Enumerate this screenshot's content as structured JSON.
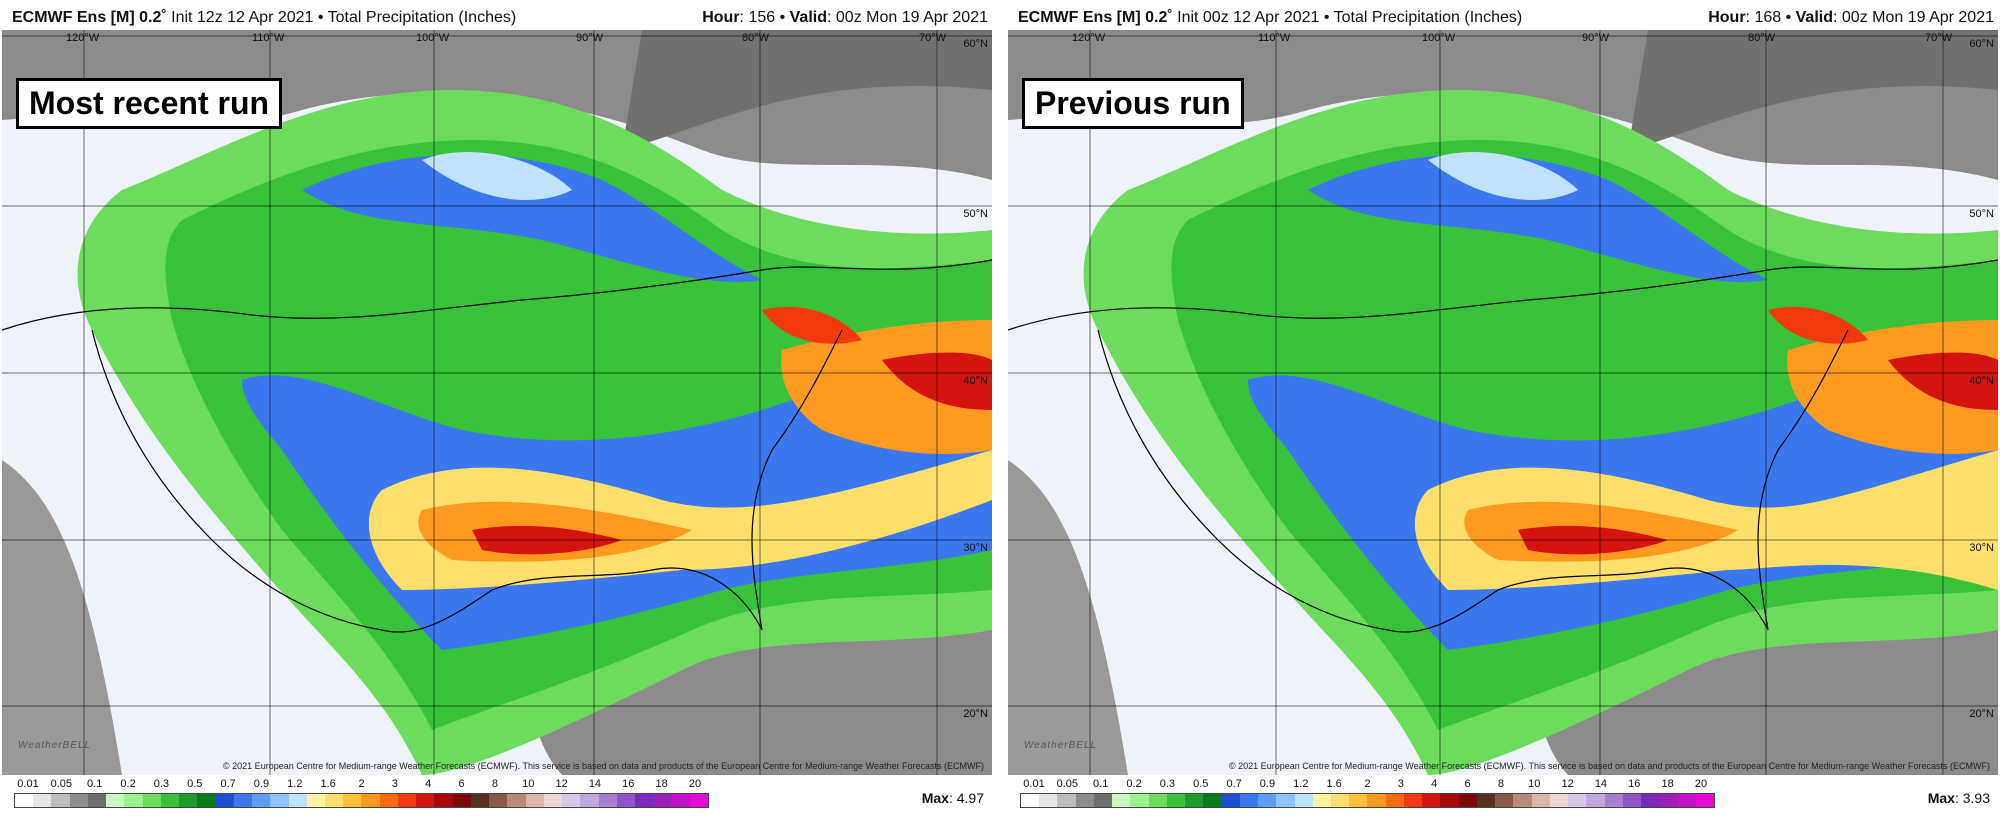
{
  "panels": [
    {
      "model": "ECMWF Ens [M] 0.2˚",
      "init": " Init 12z 12 Apr 2021",
      "field": " • Total Precipitation (Inches)",
      "hour_label": "Hour",
      "hour": ": 156",
      "valid_label": "Valid",
      "valid": ": 00z Mon 19 Apr 2021",
      "run_label": "Most recent run",
      "max_label": "Max",
      "max_value": ": 4.97"
    },
    {
      "model": "ECMWF Ens [M] 0.2˚",
      "init": " Init 00z 12 Apr 2021",
      "field": " • Total Precipitation (Inches)",
      "hour_label": "Hour",
      "hour": ": 168",
      "valid_label": "Valid",
      "valid": ": 00z Mon 19 Apr 2021",
      "run_label": "Previous run",
      "max_label": "Max",
      "max_value": ": 3.93"
    }
  ],
  "longitudes": [
    "120°W",
    "110°W",
    "100°W",
    "90°W",
    "80°W",
    "70°W"
  ],
  "latitudes": [
    "60°N",
    "50°N",
    "40°N",
    "30°N",
    "20°N"
  ],
  "copyright": "© 2021 European Centre for Medium-range Weather Forecasts (ECMWF). This service is based on data and products of the European Centre for Medium-range Weather Forecasts (ECMWF)",
  "watermark": "WeatherBELL",
  "legend": {
    "ticks": [
      "0.01",
      "0.05",
      "0.1",
      "0.2",
      "0.3",
      "0.5",
      "0.7",
      "0.9",
      "1.2",
      "1.6",
      "2",
      "3",
      "4",
      "6",
      "8",
      "10",
      "12",
      "14",
      "16",
      "18",
      "20"
    ],
    "colors": [
      "#ffffff",
      "#e6e6e6",
      "#bdbdbd",
      "#8c8c8c",
      "#6e6e6e",
      "#c9f7c0",
      "#9cf08f",
      "#6ddc5d",
      "#38c23a",
      "#1e9c2a",
      "#0d7a1f",
      "#1c4fd6",
      "#3b78f0",
      "#5f9ef6",
      "#8cc4fb",
      "#bfe2fd",
      "#fff3a3",
      "#ffdf6b",
      "#ffc23a",
      "#ff9a20",
      "#ff6a12",
      "#f23a0e",
      "#d4140e",
      "#a8070c",
      "#7a0a0a",
      "#553025",
      "#8a5a48",
      "#b88a7a",
      "#d9b6a8",
      "#efd6d0",
      "#d8c8e8",
      "#c2a6de",
      "#a97fd2",
      "#8f55c6",
      "#7a2bbb",
      "#9b1fb8",
      "#c312c6",
      "#e60ad6"
    ]
  }
}
